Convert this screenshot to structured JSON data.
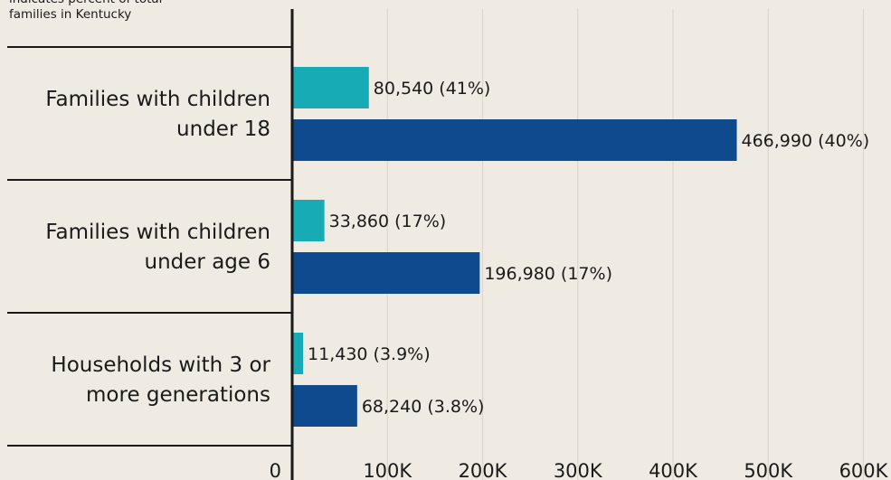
{
  "note": "indicates percent of total\nfamilies in Kentucky",
  "chart_data": {
    "type": "bar",
    "orientation": "horizontal",
    "title": "",
    "xlabel": "",
    "ylabel": "",
    "xlim": [
      0,
      630000
    ],
    "xticks": [
      0,
      100000,
      200000,
      300000,
      400000,
      500000,
      600000
    ],
    "tick_labels": [
      "0",
      "100K",
      "200K",
      "300K",
      "400K",
      "500K",
      "600K"
    ],
    "grid": true,
    "colors": [
      "#17abb5",
      "#0f4a8f"
    ],
    "categories": [
      {
        "lines": [
          "Families with children",
          "under 18"
        ]
      },
      {
        "lines": [
          "Families with children",
          "under age 6"
        ]
      },
      {
        "lines": [
          "Households with 3 or",
          "more generations"
        ]
      }
    ],
    "series": [
      {
        "color": "#17abb5",
        "values": [
          80540,
          33860,
          11430
        ],
        "labels": [
          "80,540 (41%)",
          "33,860 (17%)",
          "11,430 (3.9%)"
        ]
      },
      {
        "color": "#0f4a8f",
        "values": [
          466990,
          196980,
          68240
        ],
        "labels": [
          "466,990 (40%)",
          "196,980 (17%)",
          "68,240 (3.8%)"
        ]
      }
    ]
  }
}
